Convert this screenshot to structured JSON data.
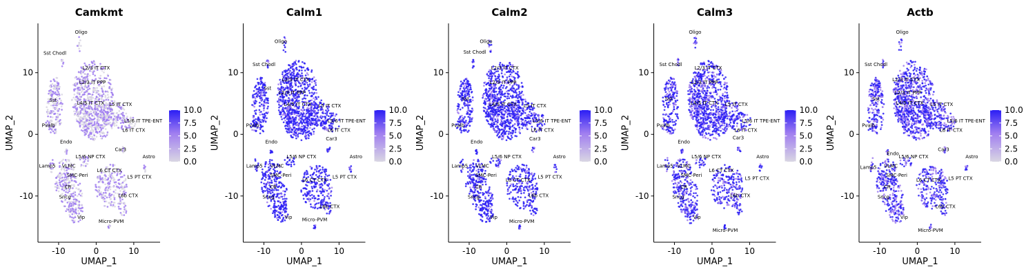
{
  "colors": {
    "low": "#d9d6e3",
    "mid": "#a07ef0",
    "high": "#2b1ef5",
    "axis": "#000000"
  },
  "chart_data": [
    {
      "type": "scatter",
      "title": "Camkmt",
      "xlabel": "UMAP_1",
      "ylabel": "UMAP_2",
      "xlim": [
        -15.5,
        17
      ],
      "ylim": [
        -17.5,
        18
      ],
      "xticks": [
        -10,
        0,
        10
      ],
      "yticks": [
        -10,
        0,
        10
      ],
      "color_scale": {
        "min": 0.0,
        "max": 10.0,
        "ticks": [
          "10.0",
          "7.5",
          "5.0",
          "2.5",
          "0.0"
        ]
      },
      "expression_level": 0.45,
      "cluster_labels": [
        {
          "text": "Oligo",
          "x": -4,
          "y": 16.3
        },
        {
          "text": "Sst Chodl",
          "x": -11,
          "y": 12.9
        },
        {
          "text": "L2/3 IT CTX",
          "x": 0,
          "y": 10.5
        },
        {
          "text": "L2/3 IT PPP",
          "x": -1,
          "y": 8.2
        },
        {
          "text": "Sst",
          "x": -11.5,
          "y": 5.3
        },
        {
          "text": "L4/5 IT CTX",
          "x": -1.5,
          "y": 4.8
        },
        {
          "text": "L5 IT CTX",
          "x": 6.5,
          "y": 4.6
        },
        {
          "text": "L5/6 IT TPE-ENT",
          "x": 12.5,
          "y": 1.9
        },
        {
          "text": "L6 IT CTX",
          "x": 10,
          "y": 0.4
        },
        {
          "text": "Pvalb",
          "x": -12.7,
          "y": 1.2
        },
        {
          "text": "Endo",
          "x": -8,
          "y": -1.5
        },
        {
          "text": "Car3",
          "x": 6.5,
          "y": -2.7
        },
        {
          "text": "L5/6 NP CTX",
          "x": -1.5,
          "y": -3.9
        },
        {
          "text": "Astro",
          "x": 14,
          "y": -3.9
        },
        {
          "text": "Lamp5",
          "x": -13,
          "y": -5.4
        },
        {
          "text": "VLMC",
          "x": -7.3,
          "y": -5.4
        },
        {
          "text": "L6 CT CTX",
          "x": 3.5,
          "y": -6.1
        },
        {
          "text": "SMC-Peri",
          "x": -5,
          "y": -6.9
        },
        {
          "text": "L5 PT CTX",
          "x": 11.5,
          "y": -7.2
        },
        {
          "text": "CR",
          "x": -7.5,
          "y": -8.8
        },
        {
          "text": "Sncg",
          "x": -8.3,
          "y": -10.4
        },
        {
          "text": "L6b CTX",
          "x": 8.5,
          "y": -10.2
        },
        {
          "text": "Vip",
          "x": -4,
          "y": -13.7
        },
        {
          "text": "Micro-PVM",
          "x": 4,
          "y": -14.4
        }
      ]
    },
    {
      "type": "scatter",
      "title": "Calm1",
      "xlabel": "UMAP_1",
      "ylabel": "UMAP_2",
      "xlim": [
        -15.5,
        17
      ],
      "ylim": [
        -17.5,
        18
      ],
      "xticks": [
        -10,
        0,
        10
      ],
      "yticks": [
        -10,
        0,
        10
      ],
      "color_scale": {
        "min": 0.0,
        "max": 10.0,
        "ticks": [
          "10.0",
          "7.5",
          "5.0",
          "2.5",
          "0.0"
        ]
      },
      "expression_level": 0.85,
      "cluster_labels": [
        {
          "text": "Oligo",
          "x": -5.5,
          "y": 14.8
        },
        {
          "text": "Sst Chodl",
          "x": -10,
          "y": 11.1
        },
        {
          "text": "L2/3 IT CTX",
          "x": -1.5,
          "y": 8.6
        },
        {
          "text": "Sst",
          "x": -9,
          "y": 7.2
        },
        {
          "text": "L2/3 IT PPP",
          "x": -2.5,
          "y": 6.5
        },
        {
          "text": "L4/5 IT CTX",
          "x": -1,
          "y": 4.6
        },
        {
          "text": "L5 IT CTX",
          "x": 7.5,
          "y": 4.4
        },
        {
          "text": "L5/6 IT TPE-ENT",
          "x": 12,
          "y": 1.9
        },
        {
          "text": "L6 IT CTX",
          "x": 10,
          "y": 0.4
        },
        {
          "text": "Pvalb",
          "x": -13,
          "y": 1.2
        },
        {
          "text": "Car3",
          "x": 8,
          "y": -1.0
        },
        {
          "text": "Endo",
          "x": -8,
          "y": -1.5
        },
        {
          "text": "L5/6 NP CTX",
          "x": 0,
          "y": -3.9
        },
        {
          "text": "Astro",
          "x": 14.5,
          "y": -3.9
        },
        {
          "text": "Lamp5",
          "x": -12.5,
          "y": -5.4
        },
        {
          "text": "VLMC",
          "x": -6.5,
          "y": -5.4
        },
        {
          "text": "SMC-Peri",
          "x": -5.5,
          "y": -6.9
        },
        {
          "text": "L6 CT CTX",
          "x": 3.5,
          "y": -7.7
        },
        {
          "text": "L5 PT CTX",
          "x": 11.5,
          "y": -7.2
        },
        {
          "text": "CR",
          "x": -7.5,
          "y": -8.8
        },
        {
          "text": "Sncg",
          "x": -8.8,
          "y": -10.4
        },
        {
          "text": "L6b CTX",
          "x": 7.5,
          "y": -12.0
        },
        {
          "text": "Vip",
          "x": -3.5,
          "y": -13.7
        },
        {
          "text": "Micro-PVM",
          "x": 3.5,
          "y": -14.1
        }
      ]
    },
    {
      "type": "scatter",
      "title": "Calm2",
      "xlabel": "UMAP_1",
      "ylabel": "UMAP_2",
      "xlim": [
        -15.5,
        17
      ],
      "ylim": [
        -17.5,
        18
      ],
      "xticks": [
        -10,
        0,
        10
      ],
      "yticks": [
        -10,
        0,
        10
      ],
      "color_scale": {
        "min": 0.0,
        "max": 10.0,
        "ticks": [
          "10.0",
          "7.5",
          "5.0",
          "2.5",
          "0.0"
        ]
      },
      "expression_level": 0.85,
      "cluster_labels": [
        {
          "text": "Oligo",
          "x": -5.5,
          "y": 14.8
        },
        {
          "text": "Sst Chodl",
          "x": -8.5,
          "y": 13.1
        },
        {
          "text": "L2/3 IT CTX",
          "x": -0.5,
          "y": 10.5
        },
        {
          "text": "L2/3 IT PPP",
          "x": -1,
          "y": 8.2
        },
        {
          "text": "Sst",
          "x": -11,
          "y": 5.5
        },
        {
          "text": "L4/5 IT CTX",
          "x": -1,
          "y": 4.6
        },
        {
          "text": "L5 IT CTX",
          "x": 7.5,
          "y": 4.4
        },
        {
          "text": "L5/6 IT TPE-ENT",
          "x": 12,
          "y": 1.9
        },
        {
          "text": "L6 IT CTX",
          "x": 9.5,
          "y": 0.4
        },
        {
          "text": "Pvalb",
          "x": -13,
          "y": 1.2
        },
        {
          "text": "Car3",
          "x": 7.5,
          "y": -1.0
        },
        {
          "text": "Endo",
          "x": -8,
          "y": -1.5
        },
        {
          "text": "L5/6 NP CTX",
          "x": 0,
          "y": -3.9
        },
        {
          "text": "Astro",
          "x": 14,
          "y": -3.9
        },
        {
          "text": "Lamp5",
          "x": -12.5,
          "y": -5.4
        },
        {
          "text": "VLMC",
          "x": -6.5,
          "y": -5.4
        },
        {
          "text": "SMC-Peri",
          "x": -5.5,
          "y": -6.9
        },
        {
          "text": "L6 CT CTX",
          "x": 3,
          "y": -7.7
        },
        {
          "text": "L5 PT CTX",
          "x": 11.5,
          "y": -7.2
        },
        {
          "text": "CR",
          "x": -7.5,
          "y": -8.8
        },
        {
          "text": "Sncg",
          "x": -8.8,
          "y": -10.4
        },
        {
          "text": "L6b CTX",
          "x": 8.5,
          "y": -10.2
        },
        {
          "text": "Vip",
          "x": -3.5,
          "y": -13.7
        },
        {
          "text": "Micro-PVM",
          "x": 4,
          "y": -14.4
        }
      ]
    },
    {
      "type": "scatter",
      "title": "Calm3",
      "xlabel": "UMAP_1",
      "ylabel": "UMAP_2",
      "xlim": [
        -15.5,
        17
      ],
      "ylim": [
        -17.5,
        18
      ],
      "xticks": [
        -10,
        0,
        10
      ],
      "yticks": [
        -10,
        0,
        10
      ],
      "color_scale": {
        "min": 0.0,
        "max": 10.0,
        "ticks": [
          "10.0",
          "7.5",
          "5.0",
          "2.5",
          "0.0"
        ]
      },
      "expression_level": 0.8,
      "cluster_labels": [
        {
          "text": "Oligo",
          "x": -4.5,
          "y": 16.3
        },
        {
          "text": "Sst Chodl",
          "x": -11,
          "y": 11.1
        },
        {
          "text": "L2/3 IT CTX",
          "x": -1,
          "y": 10.5
        },
        {
          "text": "L2/3 IT PPP",
          "x": -2,
          "y": 8.2
        },
        {
          "text": "Sst",
          "x": -11.5,
          "y": 5.5
        },
        {
          "text": "L4/5 IT CTX",
          "x": -2,
          "y": 4.8
        },
        {
          "text": "L5 IT CTX",
          "x": 6.5,
          "y": 4.6
        },
        {
          "text": "L5/6 IT TPE-ENT",
          "x": 13,
          "y": 1.9
        },
        {
          "text": "L6 IT CTX",
          "x": 9,
          "y": 0.4
        },
        {
          "text": "Pvalb",
          "x": -13,
          "y": 1.2
        },
        {
          "text": "Car3",
          "x": 7,
          "y": -0.8
        },
        {
          "text": "Endo",
          "x": -7.5,
          "y": -1.5
        },
        {
          "text": "L5/6 NP CTX",
          "x": -1.5,
          "y": -3.9
        },
        {
          "text": "Astro",
          "x": 13.5,
          "y": -3.9
        },
        {
          "text": "Lamp5",
          "x": -12.5,
          "y": -5.4
        },
        {
          "text": "VLMC",
          "x": -7.5,
          "y": -5.4
        },
        {
          "text": "L6 CT CTX",
          "x": 2.5,
          "y": -6.1
        },
        {
          "text": "SMC-Peri",
          "x": -5.5,
          "y": -6.9
        },
        {
          "text": "L5 PT CTX",
          "x": 12,
          "y": -7.4
        },
        {
          "text": "CR",
          "x": -7.5,
          "y": -8.8
        },
        {
          "text": "Sncg",
          "x": -9,
          "y": -10.4
        },
        {
          "text": "L6b CTX",
          "x": 7.5,
          "y": -10.2
        },
        {
          "text": "Vip",
          "x": -4,
          "y": -13.7
        },
        {
          "text": "Micro-PVM",
          "x": 3.5,
          "y": -15.8
        }
      ]
    },
    {
      "type": "scatter",
      "title": "Actb",
      "xlabel": "UMAP_1",
      "ylabel": "UMAP_2",
      "xlim": [
        -15.5,
        17
      ],
      "ylim": [
        -17.5,
        18
      ],
      "xticks": [
        -10,
        0,
        10
      ],
      "yticks": [
        -10,
        0,
        10
      ],
      "color_scale": {
        "min": 0.0,
        "max": 10.0,
        "ticks": [
          "10.0",
          "7.5",
          "5.0",
          "2.5",
          "0.0"
        ]
      },
      "expression_level": 0.75,
      "cluster_labels": [
        {
          "text": "Oligo",
          "x": -4,
          "y": 16.3
        },
        {
          "text": "Sst Chodl",
          "x": -11,
          "y": 11.1
        },
        {
          "text": "L2/3 IT CTX",
          "x": -3,
          "y": 8.6
        },
        {
          "text": "L2/3 IT PPP",
          "x": -2.5,
          "y": 6.5
        },
        {
          "text": "Sst",
          "x": -11,
          "y": 5.5
        },
        {
          "text": "L4/5 IT CTX",
          "x": -2,
          "y": 4.8
        },
        {
          "text": "L5 IT CTX",
          "x": 6.5,
          "y": 4.6
        },
        {
          "text": "L5/6 IT TPE-ENT",
          "x": 13,
          "y": 1.9
        },
        {
          "text": "L6 IT CTX",
          "x": 9,
          "y": 0.4
        },
        {
          "text": "Pvalb",
          "x": -13,
          "y": 1.2
        },
        {
          "text": "Car3",
          "x": 7,
          "y": -2.7
        },
        {
          "text": "Endo",
          "x": -6.5,
          "y": -3.4
        },
        {
          "text": "L5/6 NP CTX",
          "x": -1,
          "y": -3.9
        },
        {
          "text": "Astro",
          "x": 14.5,
          "y": -3.9
        },
        {
          "text": "Lamp5",
          "x": -13,
          "y": -5.6
        },
        {
          "text": "VLMC",
          "x": -7,
          "y": -5.4
        },
        {
          "text": "SMC-Peri",
          "x": -5.5,
          "y": -6.9
        },
        {
          "text": "L5 PT CTX",
          "x": 11.5,
          "y": -7.4
        },
        {
          "text": "L6 CT CTX",
          "x": 3,
          "y": -7.7
        },
        {
          "text": "CR",
          "x": -8,
          "y": -8.8
        },
        {
          "text": "Sncg",
          "x": -9,
          "y": -10.4
        },
        {
          "text": "L6b CTX",
          "x": 7.5,
          "y": -12.0
        },
        {
          "text": "Vip",
          "x": -3.5,
          "y": -13.7
        },
        {
          "text": "Micro-PVM",
          "x": 3.5,
          "y": -15.8
        }
      ]
    }
  ]
}
